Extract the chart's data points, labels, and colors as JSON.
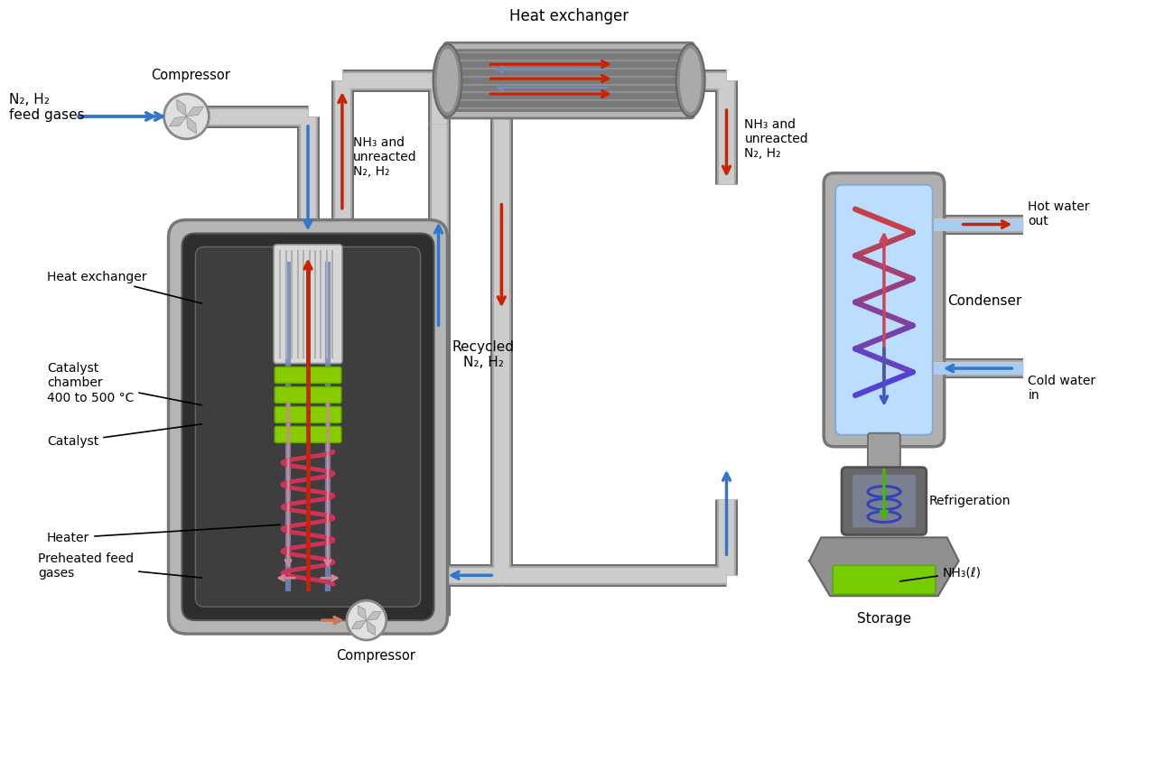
{
  "bg_color": "#ffffff",
  "fig_width": 13.0,
  "fig_height": 8.43,
  "colors": {
    "red_arrow": "#cc2200",
    "blue_arrow": "#3377cc",
    "pipe_gray_outer": "#888888",
    "pipe_gray_mid": "#aaaaaa",
    "pipe_gray_light": "#cccccc",
    "vessel_outer": "#b8b8b8",
    "vessel_mid": "#888888",
    "vessel_inner_dark": "#363636",
    "vessel_inner_mid": "#4a4a4a",
    "he_fin_bg": "#d5d5d5",
    "he_fin_line": "#aaaaaa",
    "catalyst_green": "#88cc00",
    "catalyst_edge": "#66aa00",
    "heater_coil": "#cc3355",
    "condenser_blue": "#bbddff",
    "coil_top": "#cc5566",
    "coil_bot": "#4455bb",
    "refrig_blue": "#4455cc",
    "storage_green": "#77cc00",
    "label_color": "#000000",
    "compressor_bg": "#e5e5e5",
    "compressor_edge": "#888888"
  },
  "labels": {
    "n2h2_feed": "N₂, H₂\nfeed gases",
    "compressor_top": "Compressor",
    "compressor_bot": "Compressor",
    "nh3_unreacted_left": "NH₃ and\nunreacted\nN₂, H₂",
    "nh3_unreacted_right": "NH₃ and\nunreacted\nN₂, H₂",
    "heat_exchanger_top": "Heat exchanger",
    "recycled": "Recycled\nN₂, H₂",
    "heat_exchanger_inner": "Heat exchanger",
    "catalyst_chamber": "Catalyst\nchamber\n400 to 500 °C",
    "catalyst": "Catalyst",
    "heater": "Heater",
    "preheated": "Preheated feed\ngases",
    "condenser": "Condenser",
    "cold_water_in": "Cold water\nin",
    "hot_water_out": "Hot water\nout",
    "refrigeration": "Refrigeration",
    "nh3_liquid": "NH₃(ℓ)",
    "storage": "Storage"
  }
}
